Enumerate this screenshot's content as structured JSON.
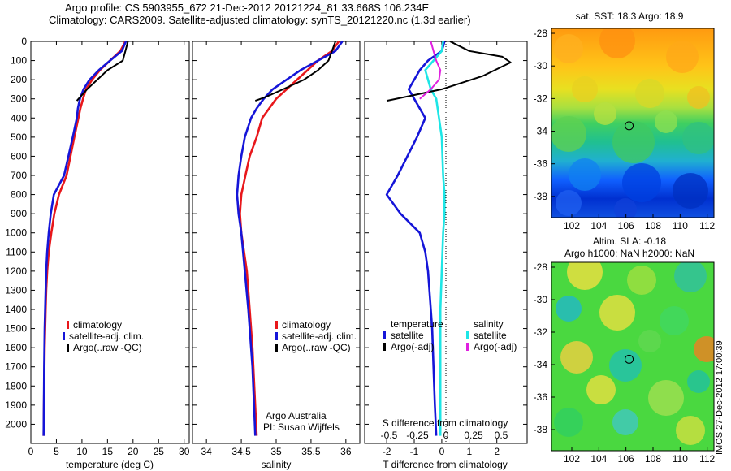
{
  "header": {
    "title_line1": "Argo profile: CS 5903955_672 21-Dec-2012 20121224_81 33.668S 106.234E",
    "title_line2": "Climatology: CARS2009. Satellite-adjusted climatology: synTS_20121220.nc (1.3d earlier)"
  },
  "timestamp": "IMOS 27-Dec-2012 17:00:39",
  "colors": {
    "red": "#e8171b",
    "blue": "#1515d8",
    "black": "#000000",
    "cyan": "#1de6e6",
    "magenta": "#e020e0"
  },
  "chart_data": [
    {
      "type": "line",
      "name": "temperature-panel",
      "xlabel": "temperature (deg C)",
      "ylabel": "",
      "xlim": [
        0,
        31
      ],
      "ylim": [
        2100,
        0
      ],
      "xticks": [
        0,
        5,
        10,
        15,
        20,
        25,
        30
      ],
      "yticks": [
        0,
        100,
        200,
        300,
        400,
        500,
        600,
        700,
        800,
        900,
        1000,
        1100,
        1200,
        1300,
        1400,
        1500,
        1600,
        1700,
        1800,
        1900,
        2000
      ],
      "legend": {
        "placement": "lower-right",
        "entries": [
          "climatology",
          "satellite-adj. clim.",
          "Argo(..raw -QC)"
        ]
      },
      "series": [
        {
          "name": "climatology",
          "color": "red",
          "x": [
            18.5,
            17.5,
            15.5,
            13.5,
            12.0,
            10.8,
            10.2,
            9.7,
            9.3,
            8.5,
            7.0,
            5.5,
            4.6,
            4.0,
            3.5,
            3.2,
            3.0,
            2.9,
            2.8,
            2.7,
            2.6,
            2.5
          ],
          "y": [
            0,
            50,
            100,
            150,
            200,
            250,
            300,
            350,
            400,
            500,
            700,
            800,
            900,
            1000,
            1100,
            1200,
            1300,
            1400,
            1500,
            1600,
            1800,
            2060
          ]
        },
        {
          "name": "satellite-adj. clim.",
          "color": "blue",
          "x": [
            18.6,
            17.8,
            15.5,
            13.3,
            11.5,
            10.3,
            9.6,
            9.2,
            9.0,
            8.2,
            6.5,
            4.5,
            3.9,
            3.5,
            3.2,
            3.0,
            2.9,
            2.8,
            2.7,
            2.6,
            2.5
          ],
          "y": [
            0,
            50,
            100,
            150,
            200,
            250,
            300,
            350,
            400,
            500,
            700,
            800,
            900,
            1000,
            1100,
            1200,
            1300,
            1400,
            1500,
            1700,
            2060
          ]
        },
        {
          "name": "Argo(..raw -QC)",
          "color": "black",
          "x": [
            19.0,
            18.5,
            18.0,
            15.0,
            13.0,
            11.0,
            9.0
          ],
          "y": [
            0,
            50,
            100,
            150,
            200,
            250,
            310
          ]
        }
      ]
    },
    {
      "type": "line",
      "name": "salinity-panel",
      "xlabel": "salinity",
      "xlim": [
        33.8,
        36.2
      ],
      "ylim": [
        2100,
        0
      ],
      "xticks": [
        34,
        34.5,
        35,
        35.5,
        36
      ],
      "tick_labels": [
        "34",
        "34.5",
        "35",
        "35.5",
        "36"
      ],
      "legend": {
        "placement": "lower-right",
        "entries": [
          "climatology",
          "satellite-adj. clim.",
          "Argo(..raw -QC)"
        ]
      },
      "annotation": {
        "line1": "Argo Australia",
        "line2": "PI: Susan Wijffels"
      },
      "series": [
        {
          "name": "climatology",
          "color": "red",
          "x": [
            35.9,
            35.8,
            35.6,
            35.45,
            35.3,
            35.15,
            35.0,
            34.9,
            34.8,
            34.72,
            34.62,
            34.56,
            34.5,
            34.48,
            34.5,
            34.54,
            34.58,
            34.62,
            34.66,
            34.72
          ],
          "y": [
            0,
            50,
            100,
            150,
            200,
            250,
            300,
            350,
            400,
            500,
            600,
            700,
            800,
            900,
            1000,
            1100,
            1200,
            1400,
            1600,
            2060
          ]
        },
        {
          "name": "satellite-adj. clim.",
          "color": "blue",
          "x": [
            35.95,
            35.85,
            35.6,
            35.35,
            35.15,
            34.95,
            34.82,
            34.72,
            34.64,
            34.55,
            34.5,
            34.46,
            34.44,
            34.46,
            34.5,
            34.55,
            34.6,
            34.66,
            34.7
          ],
          "y": [
            0,
            50,
            100,
            150,
            200,
            250,
            300,
            350,
            400,
            500,
            600,
            700,
            800,
            900,
            1000,
            1200,
            1400,
            1700,
            2060
          ]
        },
        {
          "name": "Argo(..raw -QC)",
          "color": "black",
          "x": [
            35.85,
            35.8,
            35.75,
            35.6,
            35.4,
            35.1,
            34.85,
            34.7
          ],
          "y": [
            0,
            50,
            100,
            150,
            200,
            250,
            290,
            310
          ]
        }
      ]
    },
    {
      "type": "line",
      "name": "difference-panel",
      "xlabel": "T difference from climatology",
      "top_label": "S difference from climatology",
      "xlim": [
        -2.8,
        3.1
      ],
      "ylim": [
        2100,
        0
      ],
      "xticks": [
        -2,
        -1,
        0,
        1,
        2
      ],
      "s_ticks": [
        "-0.5",
        "-0.25",
        "0",
        "0.25",
        "0.5"
      ],
      "legend": {
        "placement": "lower-center",
        "temperature_heading": "temperature",
        "salinity_heading": "salinity",
        "entries_temperature": [
          "satellite",
          "Argo(-adj)"
        ],
        "entries_salinity": [
          "satellite",
          "Argo(-adj)"
        ]
      },
      "series": [
        {
          "name": "T satellite",
          "color": "blue",
          "x": [
            0.1,
            0.0,
            -0.5,
            -0.8,
            -1.0,
            -1.2,
            -1.0,
            -0.6,
            -0.9,
            -1.6,
            -2.0,
            -1.5,
            -0.8,
            -0.6,
            -0.5,
            -0.45,
            -0.4,
            -0.35,
            -0.3,
            -0.25,
            -0.2
          ],
          "y": [
            0,
            50,
            100,
            150,
            200,
            250,
            300,
            400,
            500,
            700,
            800,
            900,
            1000,
            1100,
            1200,
            1300,
            1400,
            1500,
            1700,
            1900,
            2060
          ]
        },
        {
          "name": "S satellite",
          "color": "cyan",
          "x": [
            0.05,
            0.0,
            -0.3,
            -0.6,
            -0.5,
            -0.4,
            -0.2,
            -0.1,
            0.0,
            0.05,
            0.1,
            0.1,
            0.05,
            0.0,
            -0.05,
            -0.05,
            -0.05,
            -0.05
          ],
          "y": [
            0,
            50,
            100,
            150,
            200,
            250,
            300,
            400,
            500,
            700,
            800,
            900,
            1000,
            1200,
            1400,
            1600,
            1800,
            2060
          ]
        },
        {
          "name": "T Argo(-adj)",
          "color": "black",
          "x": [
            0.3,
            1.0,
            2.2,
            2.5,
            1.5,
            0.0,
            -2.0
          ],
          "y": [
            0,
            50,
            80,
            110,
            180,
            250,
            310
          ]
        },
        {
          "name": "S Argo(-adj)",
          "color": "magenta",
          "x": [
            -0.4,
            -0.3,
            -0.2,
            -0.05,
            -0.1,
            -0.4,
            -0.8
          ],
          "y": [
            0,
            50,
            100,
            150,
            200,
            250,
            300
          ]
        }
      ]
    },
    {
      "type": "heatmap",
      "name": "sst-map",
      "title": "sat. SST: 18.3 Argo: 18.9",
      "xticks": [
        102,
        104,
        106,
        108,
        110,
        112
      ],
      "yticks": [
        -28,
        -30,
        -32,
        -34,
        -36,
        -38
      ],
      "xlim": [
        100.5,
        112.5
      ],
      "ylim": [
        -39.3,
        -27.7
      ],
      "marker": {
        "lon": 106.234,
        "lat": -33.668
      }
    },
    {
      "type": "heatmap",
      "name": "sla-map",
      "title_line1": "Altim. SLA: -0.18",
      "title_line2": "Argo h1000: NaN h2000: NaN",
      "xticks": [
        102,
        104,
        106,
        108,
        110,
        112
      ],
      "yticks": [
        -28,
        -30,
        -32,
        -34,
        -36,
        -38
      ],
      "xlim": [
        100.5,
        112.5
      ],
      "ylim": [
        -39.3,
        -27.7
      ],
      "marker": {
        "lon": 106.234,
        "lat": -33.668
      }
    }
  ]
}
